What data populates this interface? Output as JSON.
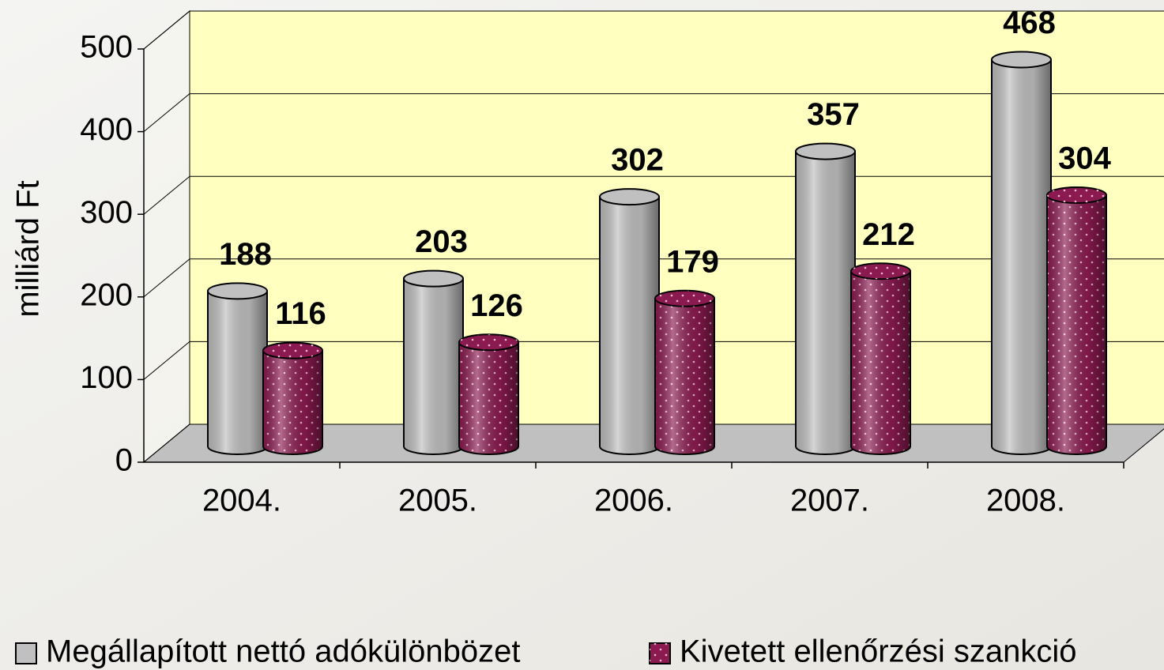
{
  "chart_data": {
    "type": "bar3d",
    "y_label": "milliárd Ft",
    "categories": [
      "2004.",
      "2005.",
      "2006.",
      "2007.",
      "2008."
    ],
    "series": [
      {
        "name": "Megállapított nettó adókülönbözet",
        "color": "#c0c0c0",
        "values": [
          188,
          203,
          302,
          357,
          468
        ]
      },
      {
        "name": "Kivetett ellenőrzési szankció",
        "color": "#8b1a50",
        "values": [
          116,
          126,
          179,
          212,
          304
        ]
      }
    ],
    "ylim": [
      0,
      500
    ],
    "yticks": [
      0,
      100,
      200,
      300,
      400,
      500
    ],
    "grid": true,
    "legend": "bottom"
  }
}
